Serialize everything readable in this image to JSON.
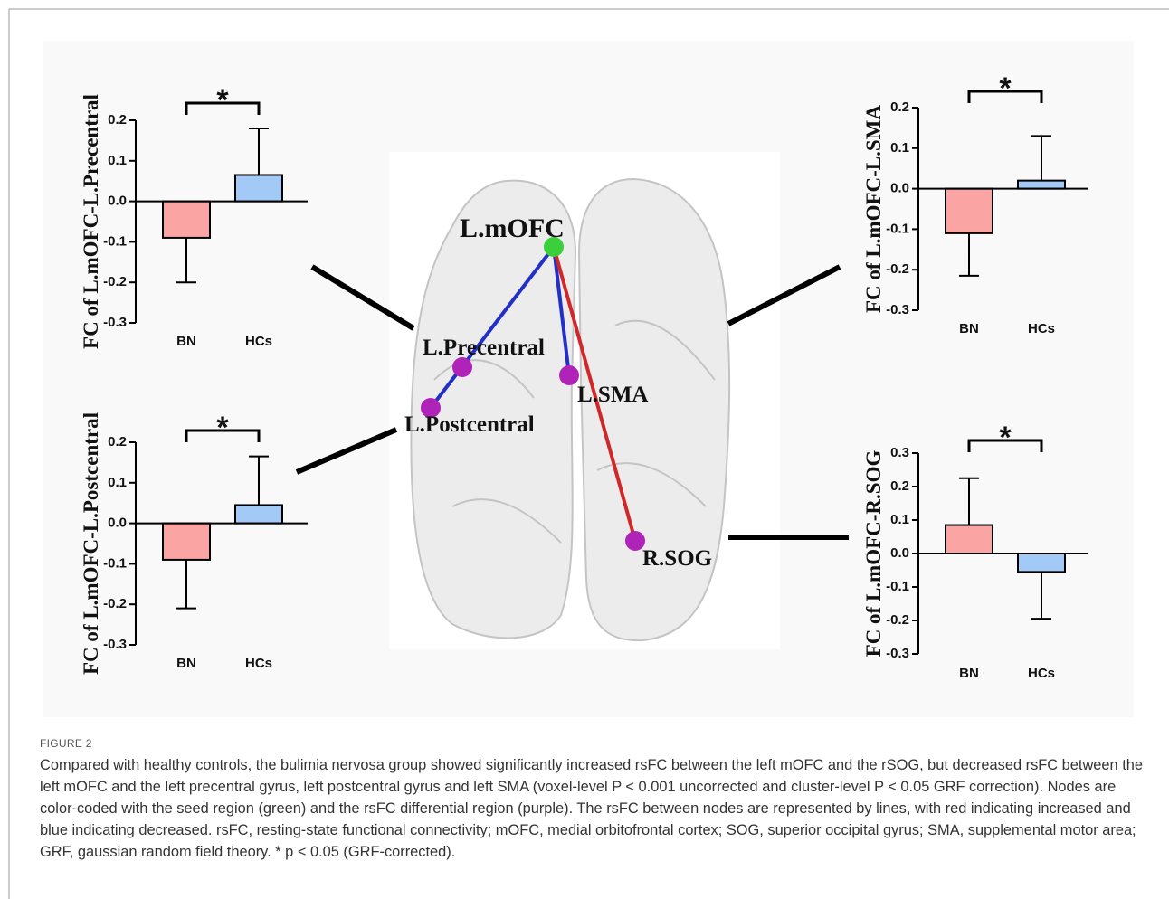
{
  "chart_data": [
    {
      "type": "bar",
      "y_label": "FC of L.mOFC-L.Precentral",
      "annotation": "*",
      "categories": [
        "BN",
        "HCs"
      ],
      "values": [
        -0.09,
        0.065
      ],
      "errors": [
        0.11,
        0.115
      ],
      "colors": [
        "#fba4a4",
        "#a3c9f7"
      ],
      "ylim": [
        -0.3,
        0.2
      ],
      "yticks": [
        -0.3,
        -0.2,
        -0.1,
        {
          "value": 0,
          "label": "0.0"
        },
        0.1,
        0.2
      ]
    },
    {
      "type": "bar",
      "y_label": "FC of L.mOFC-L.SMA",
      "annotation": "*",
      "categories": [
        "BN",
        "HCs"
      ],
      "values": [
        -0.11,
        0.02
      ],
      "errors": [
        0.105,
        0.11
      ],
      "colors": [
        "#fba4a4",
        "#a3c9f7"
      ],
      "ylim": [
        -0.3,
        0.2
      ],
      "yticks": [
        -0.3,
        -0.2,
        -0.1,
        {
          "value": 0,
          "label": "0.0"
        },
        0.1,
        0.2
      ]
    },
    {
      "type": "bar",
      "y_label": "FC of L.mOFC-L.Postcentral",
      "annotation": "*",
      "categories": [
        "BN",
        "HCs"
      ],
      "values": [
        -0.09,
        0.045
      ],
      "errors": [
        0.12,
        0.12
      ],
      "colors": [
        "#fba4a4",
        "#a3c9f7"
      ],
      "ylim": [
        -0.3,
        0.2
      ],
      "yticks": [
        -0.3,
        -0.2,
        -0.1,
        {
          "value": 0,
          "label": "0.0"
        },
        0.1,
        0.2
      ]
    },
    {
      "type": "bar",
      "y_label": "FC of L.mOFC-R.SOG",
      "annotation": "*",
      "categories": [
        "BN",
        "HCs"
      ],
      "values": [
        0.085,
        -0.055
      ],
      "errors": [
        0.14,
        0.14
      ],
      "colors": [
        "#fba4a4",
        "#a3c9f7"
      ],
      "ylim": [
        -0.3,
        0.3
      ],
      "yticks": [
        -0.3,
        -0.2,
        -0.1,
        {
          "value": 0,
          "label": "0.0"
        },
        0.1,
        0.2,
        0.3
      ]
    }
  ],
  "brain": {
    "labels": [
      "L.mOFC",
      "L.Precentral",
      "L.SMA",
      "L.Postcentral",
      "R.SOG"
    ]
  },
  "figure": {
    "label": "FIGURE 2",
    "caption": "Compared with healthy controls, the bulimia nervosa group showed significantly increased rsFC between the left mOFC and the rSOG, but decreased rsFC between the left mOFC and the left precentral gyrus, left postcentral gyrus and left SMA (voxel-level P < 0.001 uncorrected and cluster-level P < 0.05 GRF correction). Nodes are color-coded with the seed region (green) and the rsFC differential region (purple). The rsFC between nodes are represented by lines, with red indicating increased and blue indicating decreased. rsFC, resting-state functional connectivity; mOFC, medial orbitofrontal cortex; SOG, superior occipital gyrus; SMA, supplemental motor area; GRF, gaussian random field theory. * p < 0.05 (GRF-corrected)."
  }
}
